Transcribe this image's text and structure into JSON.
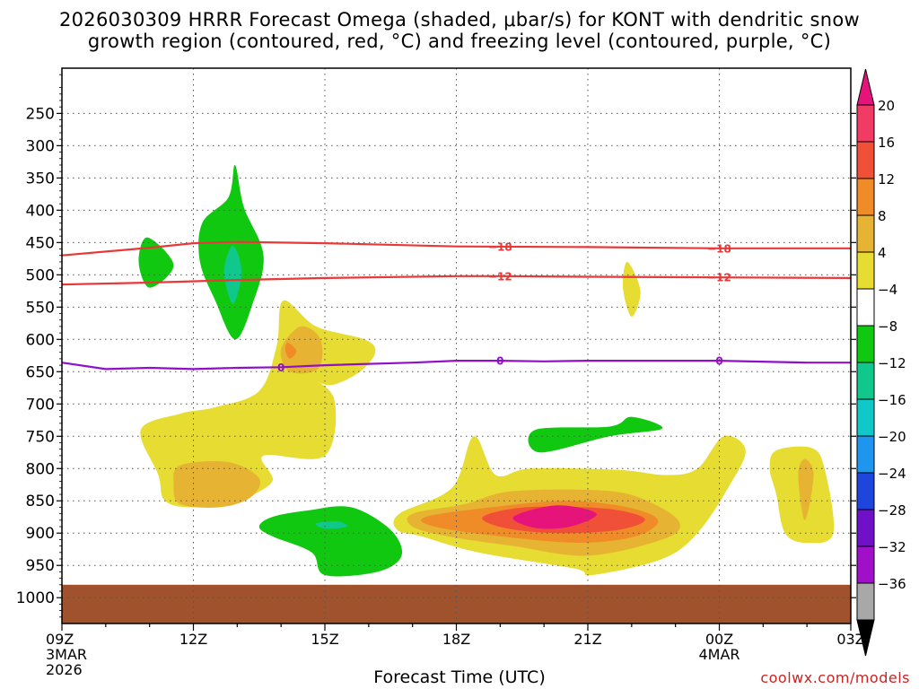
{
  "chart_data": {
    "type": "heatmap",
    "title_line1": "2026030309 HRRR Forecast Omega (shaded, μbar/s) for KONT with dendritic snow",
    "title_line2": "growth region (contoured, red, °C) and freezing level (contoured, purple, °C)",
    "xlabel": "Forecast Time (UTC)",
    "ylabel": "",
    "x_range_hours": [
      0,
      18
    ],
    "y_range_hPa": [
      180,
      1040
    ],
    "x_ticks": [
      {
        "hour": 0,
        "label": "09Z",
        "sub1": "3MAR",
        "sub2": "2026"
      },
      {
        "hour": 3,
        "label": "12Z",
        "sub1": "",
        "sub2": ""
      },
      {
        "hour": 6,
        "label": "15Z",
        "sub1": "",
        "sub2": ""
      },
      {
        "hour": 9,
        "label": "18Z",
        "sub1": "",
        "sub2": ""
      },
      {
        "hour": 12,
        "label": "21Z",
        "sub1": "",
        "sub2": ""
      },
      {
        "hour": 15,
        "label": "00Z",
        "sub1": "4MAR",
        "sub2": ""
      },
      {
        "hour": 18,
        "label": "03Z",
        "sub1": "",
        "sub2": ""
      }
    ],
    "y_ticks": [
      250,
      300,
      350,
      400,
      450,
      500,
      550,
      600,
      650,
      700,
      750,
      800,
      850,
      900,
      950,
      1000
    ],
    "y_tick_labels": [
      "250",
      "300",
      "350",
      "400",
      "450",
      "500",
      "550",
      "600",
      "650",
      "700",
      "750",
      "800",
      "850",
      "900",
      "950",
      "1000"
    ],
    "surface_pressure_hPa": 980,
    "grid": true,
    "colorbar": {
      "labels": [
        "20",
        "16",
        "12",
        "8",
        "4",
        "−4",
        "−8",
        "−12",
        "−16",
        "−20",
        "−24",
        "−28",
        "−32",
        "−36"
      ],
      "colors": [
        "#f03c64",
        "#f05038",
        "#f08c28",
        "#e6b432",
        "#e6dc32",
        "#ffffff",
        "#10c810",
        "#10c88c",
        "#10c8c8",
        "#1e96f0",
        "#1e46dc",
        "#7010c8",
        "#a010c8",
        "#a8a8a8"
      ],
      "top_arrow_color": "#e6147a",
      "bottom_arrow_color": "#000000"
    },
    "contours": [
      {
        "name": "-18",
        "label": "−18",
        "color": "#e83838",
        "points": [
          [
            0,
            470
          ],
          [
            2,
            458
          ],
          [
            3,
            451
          ],
          [
            4,
            449
          ],
          [
            6,
            451
          ],
          [
            9,
            456
          ],
          [
            12,
            457
          ],
          [
            15,
            459
          ],
          [
            18,
            459
          ]
        ],
        "label_hours": [
          10,
          15
        ]
      },
      {
        "name": "-12",
        "label": "−12",
        "color": "#e83838",
        "points": [
          [
            0,
            515
          ],
          [
            2,
            512
          ],
          [
            4,
            508
          ],
          [
            6,
            505
          ],
          [
            9,
            502
          ],
          [
            10,
            502
          ],
          [
            12,
            503
          ],
          [
            15,
            504
          ],
          [
            18,
            505
          ]
        ],
        "label_hours": [
          10,
          15
        ]
      },
      {
        "name": "0",
        "label": "0",
        "color": "#9010c8",
        "points": [
          [
            0,
            636
          ],
          [
            1,
            646
          ],
          [
            2,
            644
          ],
          [
            3,
            646
          ],
          [
            4,
            644
          ],
          [
            5,
            643
          ],
          [
            6,
            640
          ],
          [
            8,
            636
          ],
          [
            9,
            633
          ],
          [
            10,
            633
          ],
          [
            11,
            634
          ],
          [
            12,
            633
          ],
          [
            15,
            633
          ],
          [
            17,
            636
          ],
          [
            18,
            636
          ]
        ],
        "label_hours": [
          5,
          10,
          15
        ]
      }
    ],
    "omega_regions": [
      {
        "name": "omega-green-upper-small",
        "value": -6,
        "color": "#10c810",
        "points": [
          [
            1.95,
            442
          ],
          [
            2.55,
            485
          ],
          [
            2.0,
            520
          ],
          [
            1.75,
            480
          ]
        ]
      },
      {
        "name": "omega-green-upper-large",
        "value": -6,
        "color": "#10c810",
        "points": [
          [
            3.95,
            330
          ],
          [
            4.15,
            395
          ],
          [
            4.6,
            470
          ],
          [
            4.35,
            545
          ],
          [
            3.95,
            600
          ],
          [
            3.5,
            540
          ],
          [
            3.15,
            480
          ],
          [
            3.2,
            420
          ],
          [
            3.8,
            380
          ]
        ]
      },
      {
        "name": "omega-teal-core",
        "value": -10,
        "color": "#10c88c",
        "points": [
          [
            3.9,
            455
          ],
          [
            4.1,
            495
          ],
          [
            3.9,
            545
          ],
          [
            3.7,
            495
          ]
        ]
      },
      {
        "name": "omega-yellow-core",
        "value": 6,
        "color": "#e6dc32",
        "points": [
          [
            1.8,
            740
          ],
          [
            2.7,
            715
          ],
          [
            3.5,
            705
          ],
          [
            4.5,
            680
          ],
          [
            4.9,
            610
          ],
          [
            5.05,
            540
          ],
          [
            5.8,
            580
          ],
          [
            6.9,
            600
          ],
          [
            7.15,
            620
          ],
          [
            6.8,
            650
          ],
          [
            6.2,
            670
          ],
          [
            5.8,
            665
          ],
          [
            5.4,
            650
          ],
          [
            6.2,
            690
          ],
          [
            6.0,
            780
          ],
          [
            4.6,
            780
          ],
          [
            4.8,
            820
          ],
          [
            4.0,
            850
          ],
          [
            3.0,
            860
          ],
          [
            2.35,
            850
          ],
          [
            2.2,
            810
          ]
        ]
      },
      {
        "name": "omega-orange-upper",
        "value": 10,
        "color": "#e6b432",
        "points": [
          [
            5.0,
            615
          ],
          [
            5.45,
            580
          ],
          [
            5.9,
            600
          ],
          [
            5.85,
            645
          ],
          [
            5.2,
            650
          ]
        ]
      },
      {
        "name": "omega-red-upper",
        "value": 14,
        "color": "#f08c28",
        "points": [
          [
            5.15,
            605
          ],
          [
            5.35,
            618
          ],
          [
            5.2,
            630
          ],
          [
            5.1,
            618
          ]
        ]
      },
      {
        "name": "omega-orange-lower",
        "value": 10,
        "color": "#e6b432",
        "points": [
          [
            2.7,
            795
          ],
          [
            3.8,
            790
          ],
          [
            4.5,
            815
          ],
          [
            4.3,
            845
          ],
          [
            3.6,
            860
          ],
          [
            2.7,
            855
          ],
          [
            2.55,
            825
          ]
        ]
      },
      {
        "name": "omega-green-low",
        "value": -6,
        "color": "#10c810",
        "points": [
          [
            4.8,
            875
          ],
          [
            5.6,
            865
          ],
          [
            6.6,
            860
          ],
          [
            7.5,
            895
          ],
          [
            7.75,
            935
          ],
          [
            7.2,
            960
          ],
          [
            6.0,
            965
          ],
          [
            5.7,
            930
          ],
          [
            4.8,
            905
          ],
          [
            4.5,
            890
          ]
        ]
      },
      {
        "name": "omega-teal-low",
        "value": -10,
        "color": "#10c88c",
        "points": [
          [
            5.8,
            885
          ],
          [
            6.3,
            882
          ],
          [
            6.5,
            890
          ],
          [
            6.0,
            893
          ]
        ]
      },
      {
        "name": "omega-green-mid",
        "value": -6,
        "color": "#10c810",
        "points": [
          [
            10.8,
            740
          ],
          [
            12.5,
            735
          ],
          [
            13.0,
            720
          ],
          [
            13.7,
            738
          ],
          [
            12.5,
            750
          ],
          [
            10.9,
            775
          ]
        ]
      },
      {
        "name": "omega-yellow-mid",
        "value": 6,
        "color": "#e6dc32",
        "points": [
          [
            12.9,
            480
          ],
          [
            13.2,
            525
          ],
          [
            13.0,
            565
          ],
          [
            12.8,
            520
          ]
        ]
      },
      {
        "name": "omega-yellow-low",
        "value": 6,
        "color": "#e6dc32",
        "points": [
          [
            7.7,
            870
          ],
          [
            8.9,
            830
          ],
          [
            9.4,
            750
          ],
          [
            9.9,
            810
          ],
          [
            10.7,
            800
          ],
          [
            12.7,
            802
          ],
          [
            13.8,
            810
          ],
          [
            14.5,
            800
          ],
          [
            15.1,
            750
          ],
          [
            15.6,
            772
          ],
          [
            15.2,
            830
          ],
          [
            14.5,
            900
          ],
          [
            13.7,
            940
          ],
          [
            12.1,
            965
          ],
          [
            11.7,
            955
          ],
          [
            9.5,
            930
          ],
          [
            8.2,
            905
          ],
          [
            7.65,
            895
          ]
        ]
      },
      {
        "name": "omega-orange-band",
        "value": 10,
        "color": "#e6b432",
        "points": [
          [
            8.0,
            870
          ],
          [
            9.2,
            855
          ],
          [
            10.3,
            835
          ],
          [
            12.5,
            835
          ],
          [
            13.5,
            855
          ],
          [
            14.1,
            885
          ],
          [
            13.7,
            910
          ],
          [
            12.0,
            935
          ],
          [
            10.3,
            920
          ],
          [
            8.8,
            905
          ],
          [
            8.0,
            890
          ]
        ]
      },
      {
        "name": "omega-red-band",
        "value": 14,
        "color": "#f08c28",
        "points": [
          [
            8.3,
            875
          ],
          [
            9.8,
            860
          ],
          [
            11.5,
            850
          ],
          [
            12.9,
            860
          ],
          [
            13.6,
            880
          ],
          [
            13.1,
            905
          ],
          [
            11.8,
            915
          ],
          [
            10.0,
            905
          ],
          [
            8.5,
            890
          ]
        ]
      },
      {
        "name": "omega-redpink-band",
        "value": 18,
        "color": "#f05038",
        "points": [
          [
            9.6,
            875
          ],
          [
            10.6,
            860
          ],
          [
            12.4,
            862
          ],
          [
            13.3,
            878
          ],
          [
            12.7,
            895
          ],
          [
            11.3,
            900
          ],
          [
            10.1,
            892
          ]
        ]
      },
      {
        "name": "omega-pink-core",
        "value": 21,
        "color": "#e6147a",
        "points": [
          [
            10.3,
            875
          ],
          [
            11.3,
            857
          ],
          [
            12.2,
            870
          ],
          [
            11.6,
            890
          ],
          [
            10.8,
            892
          ]
        ]
      },
      {
        "name": "omega-yellow-right",
        "value": 6,
        "color": "#e6dc32",
        "points": [
          [
            16.3,
            772
          ],
          [
            17.1,
            768
          ],
          [
            17.4,
            800
          ],
          [
            17.6,
            900
          ],
          [
            17.0,
            915
          ],
          [
            16.5,
            900
          ],
          [
            16.3,
            840
          ],
          [
            16.15,
            800
          ]
        ]
      },
      {
        "name": "omega-orange-right",
        "value": 10,
        "color": "#e6b432",
        "points": [
          [
            16.95,
            785
          ],
          [
            17.15,
            810
          ],
          [
            16.95,
            880
          ],
          [
            16.8,
            810
          ]
        ]
      }
    ]
  },
  "credit": "coolwx.com/models"
}
